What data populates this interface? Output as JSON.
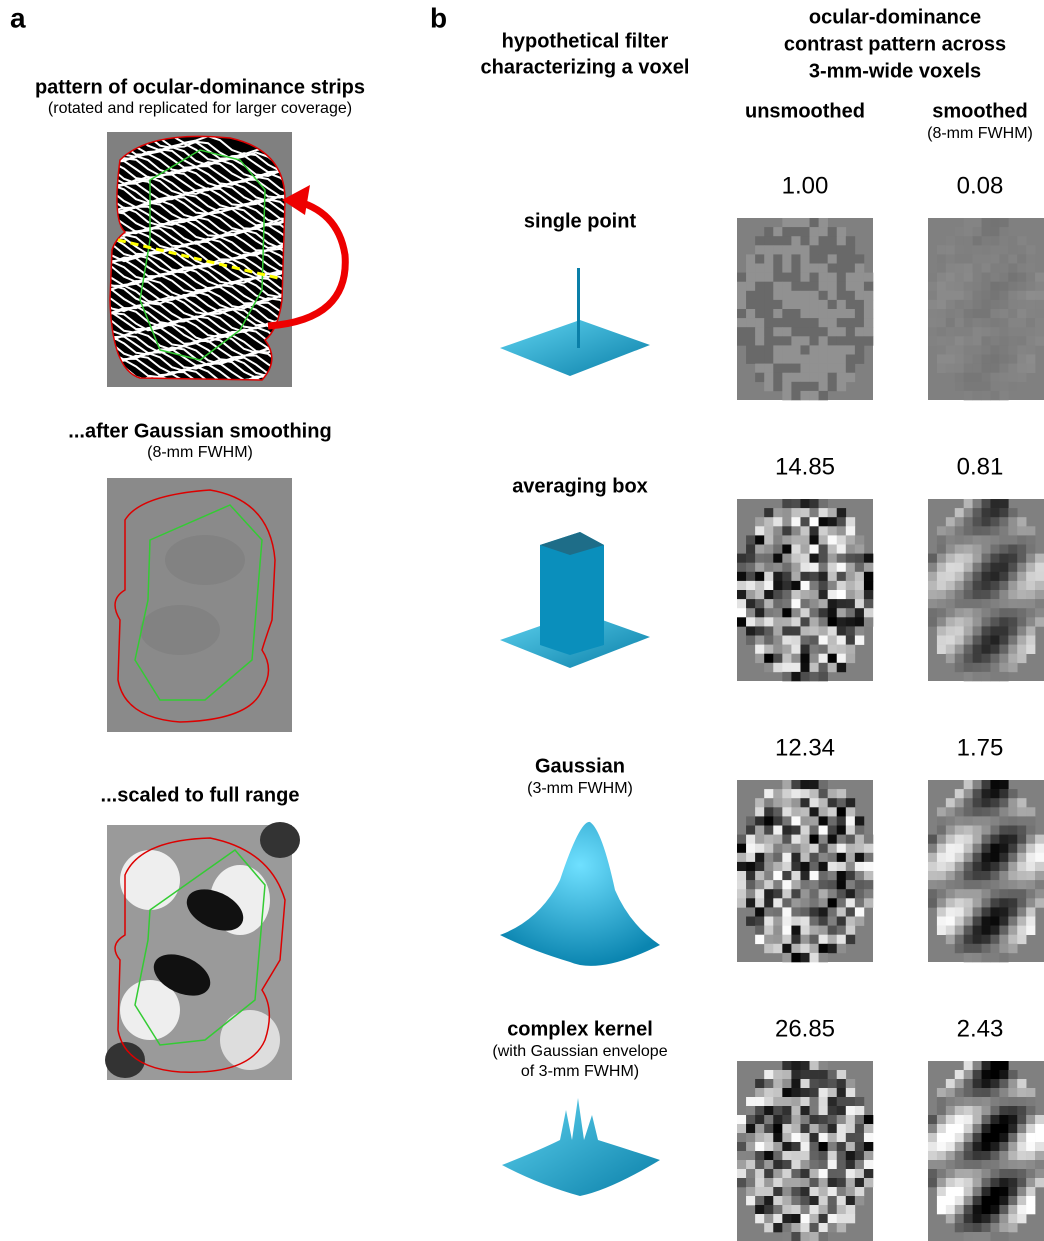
{
  "panel_a": {
    "label": "a",
    "title": "pattern of ocular-dominance strips",
    "subtitle": "(rotated and replicated for larger coverage)",
    "smoothed_title": "...after Gaussian smoothing",
    "smoothed_subtitle": "(8-mm FWHM)",
    "scaled_title": "...scaled to full range"
  },
  "panel_b": {
    "label": "b",
    "filter_header": [
      "hypothetical filter",
      "characterizing a voxel"
    ],
    "contrast_header": [
      "ocular-dominance",
      "contrast pattern across",
      "3-mm-wide voxels"
    ],
    "col_unsmoothed": "unsmoothed",
    "col_smoothed": "smoothed",
    "col_smoothed_note": "(8-mm FWHM)",
    "rows": [
      {
        "name": "single point",
        "unsmoothed": "1.00",
        "smoothed": "0.08"
      },
      {
        "name": "averaging box",
        "unsmoothed": "14.85",
        "smoothed": "0.81"
      },
      {
        "name": "Gaussian",
        "note": [
          "(3-mm FWHM)"
        ],
        "unsmoothed": "12.34",
        "smoothed": "1.75"
      },
      {
        "name": "complex kernel",
        "note": [
          "(with Gaussian envelope",
          "of 3-mm FWHM)"
        ],
        "unsmoothed": "26.85",
        "smoothed": "2.43"
      }
    ]
  }
}
